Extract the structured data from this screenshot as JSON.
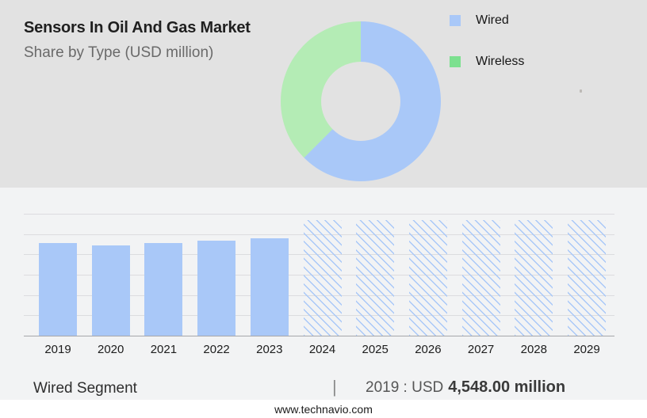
{
  "header": {
    "title": "Sensors In Oil And Gas Market",
    "subtitle": "Share by Type (USD million)"
  },
  "legend": {
    "items": [
      {
        "label": "Wired",
        "color": "#a9c8f8"
      },
      {
        "label": "Wireless",
        "color": "#7ce08f"
      }
    ]
  },
  "chart_data": [
    {
      "type": "pie",
      "name": "share-by-type-donut",
      "labels": [
        "Wired",
        "Wireless"
      ],
      "values_pct": [
        62.5,
        37.5
      ],
      "colors": [
        "#a9c8f8",
        "#b4ecb5"
      ],
      "donut": true,
      "inner_radius_ratio": 0.5,
      "start_angle_deg": 0,
      "legend_position": "right"
    },
    {
      "type": "bar",
      "name": "market-size-by-year",
      "categories": [
        "2019",
        "2020",
        "2021",
        "2022",
        "2023",
        "2024",
        "2025",
        "2026",
        "2027",
        "2028",
        "2029"
      ],
      "values": [
        4548,
        4430,
        4560,
        4680,
        4790,
        5690,
        5690,
        5690,
        5690,
        5690,
        5690
      ],
      "labeled_value": {
        "year": "2019",
        "text": "USD 4,548.00 million"
      },
      "unit": "USD million",
      "forecast_categories": [
        "2024",
        "2025",
        "2026",
        "2027",
        "2028",
        "2029"
      ],
      "forecast_style": "hatched",
      "bar_color": "#a9c8f8",
      "ylim": [
        0,
        6000
      ],
      "gridline_interval": 1000,
      "grid": "on",
      "y_tick_labels_visible": false,
      "xlabel": "",
      "ylabel": ""
    }
  ],
  "caption": {
    "segment": "Wired Segment",
    "divider": "|",
    "stat_prefix": "2019 : USD",
    "stat_value": "4,548.00 million"
  },
  "footer": {
    "url": "www.technavio.com"
  },
  "colors": {
    "header_bg": "#e2e2e2",
    "panel_bg": "#f2f3f4",
    "footer_bg": "#ffffff",
    "bar_blue": "#a9c8f8",
    "donut_green": "#b4ecb5",
    "legend_green": "#7ce08f",
    "gridline": "#dcdcdf",
    "axis": "#a6a6a9"
  }
}
